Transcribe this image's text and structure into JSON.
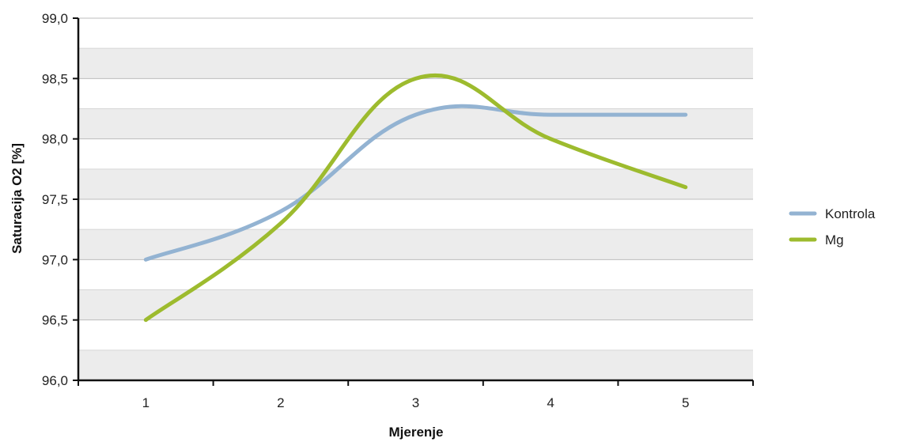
{
  "chart_data": {
    "type": "line",
    "categories": [
      "1",
      "2",
      "3",
      "4",
      "5"
    ],
    "series": [
      {
        "name": "Kontrola",
        "values": [
          97.0,
          97.4,
          98.2,
          98.2,
          98.2
        ],
        "color": "#93b3d2"
      },
      {
        "name": "Mg",
        "values": [
          96.5,
          97.3,
          98.5,
          98.0,
          97.6
        ],
        "color": "#9dbb2e"
      }
    ],
    "xlabel": "Mjerenje",
    "ylabel": "Saturacija O2 [%]",
    "ylim": [
      96.0,
      99.0
    ],
    "yticks": [
      "96,0",
      "96,5",
      "97,0",
      "97,5",
      "98,0",
      "98,5",
      "99,0"
    ],
    "grid": true,
    "banded_background": true,
    "smooth_lines": true,
    "legend_position": "right"
  }
}
